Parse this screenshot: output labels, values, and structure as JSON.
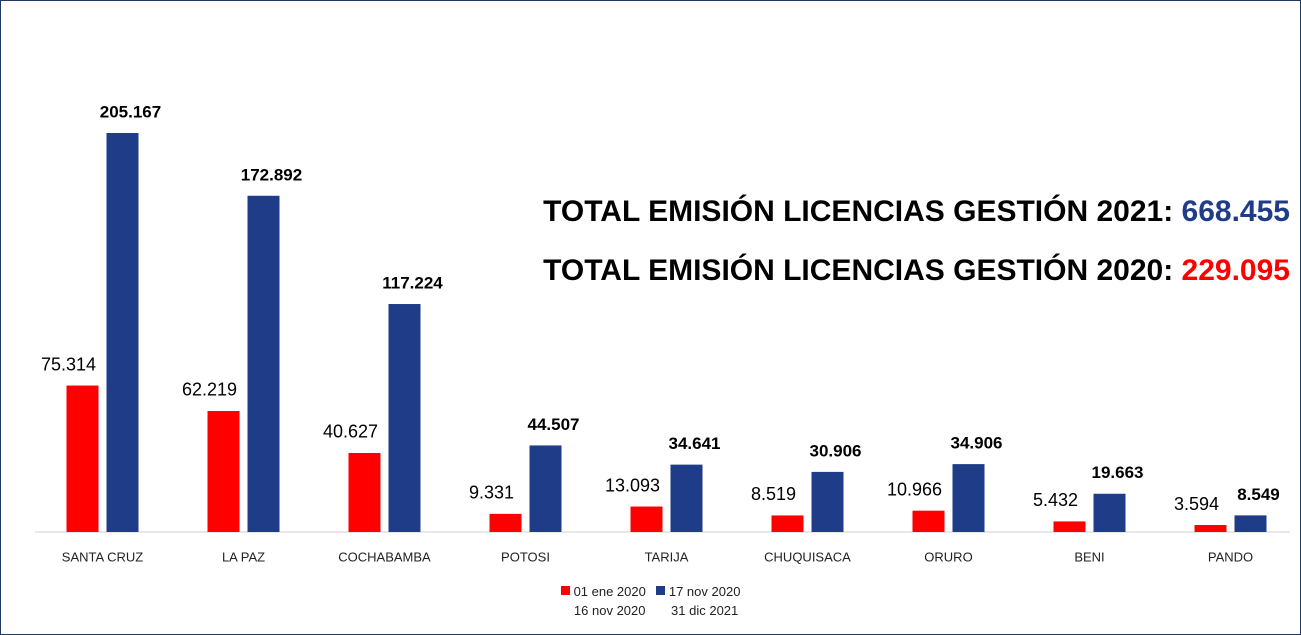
{
  "chart_data": {
    "type": "bar",
    "categories": [
      "SANTA CRUZ",
      "LA PAZ",
      "COCHABAMBA",
      "POTOSI",
      "TARIJA",
      "CHUQUISACA",
      "ORURO",
      "BENI",
      "PANDO"
    ],
    "series": [
      {
        "name": "01 ene 2020\n16 nov 2020",
        "color": "#ff0000",
        "values": [
          75314,
          62219,
          40627,
          9331,
          13093,
          8519,
          10966,
          5432,
          3594
        ],
        "value_labels": [
          "75.314",
          "62.219",
          "40.627",
          "9.331",
          "13.093",
          "8.519",
          "10.966",
          "5.432",
          "3.594"
        ]
      },
      {
        "name": "17 nov 2020\n31 dic 2021",
        "color": "#1f3c88",
        "values": [
          205167,
          172892,
          117224,
          44507,
          34641,
          30906,
          34906,
          19663,
          8549
        ],
        "value_labels": [
          "205.167",
          "172.892",
          "117.224",
          "44.507",
          "34.641",
          "30.906",
          "34.906",
          "19.663",
          "8.549"
        ]
      }
    ],
    "annotations": [
      {
        "text": "TOTAL EMISIÓN LICENCIAS GESTIÓN 2021:",
        "value_label": "668.455",
        "color": "#1f3c88"
      },
      {
        "text": "TOTAL EMISIÓN LICENCIAS GESTIÓN 2020:",
        "value_label": "229.095",
        "color": "#ff0000"
      }
    ]
  }
}
